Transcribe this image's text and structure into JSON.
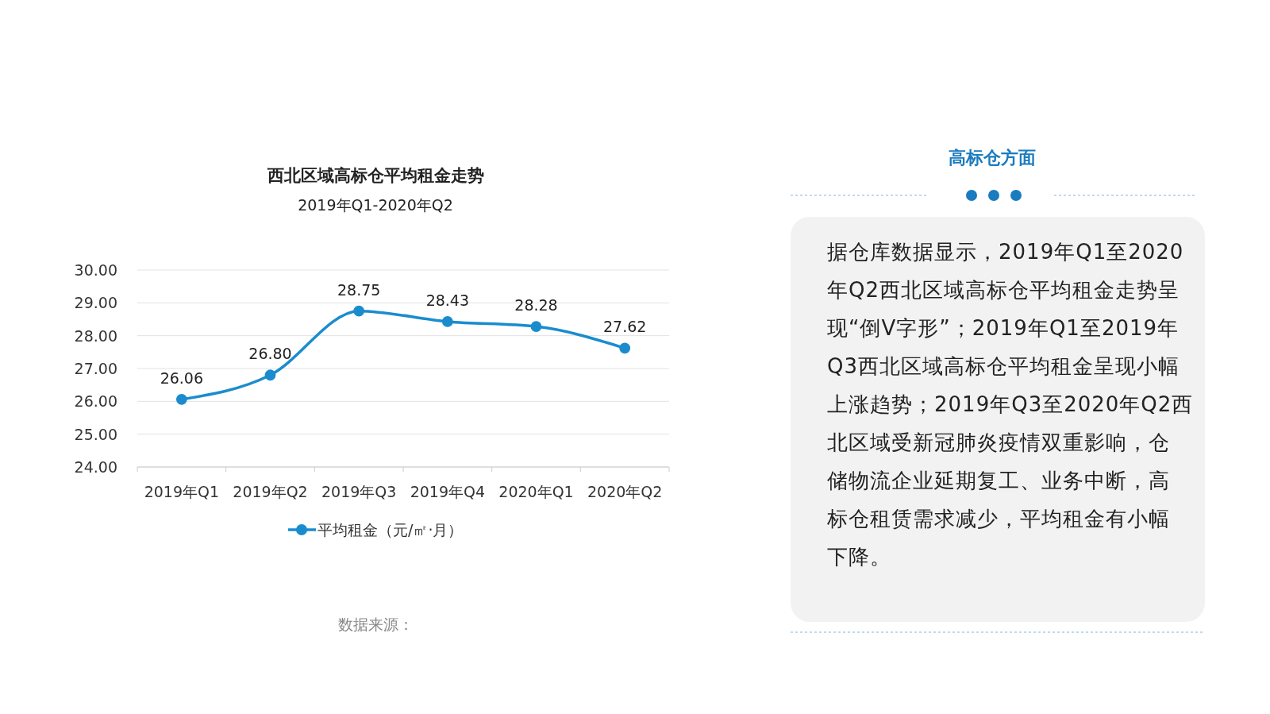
{
  "chart_data": [
    {
      "type": "line",
      "title": "西北区域高标仓平均租金走势",
      "subtitle": "2019年Q1-2020年Q2",
      "categories": [
        "2019年Q1",
        "2019年Q2",
        "2019年Q3",
        "2019年Q4",
        "2020年Q1",
        "2020年Q2"
      ],
      "series": [
        {
          "name": "平均租金（元/㎡·月）",
          "color": "#1a8cce",
          "values": [
            26.06,
            26.8,
            28.75,
            28.43,
            28.28,
            27.62
          ],
          "value_labels": [
            "26.06",
            "26.80",
            "28.75",
            "28.43",
            "28.28",
            "27.62"
          ]
        }
      ],
      "ylim": [
        24,
        30
      ],
      "yticks": [
        {
          "value": 24,
          "label": "24.00"
        },
        {
          "value": 25,
          "label": "25.00"
        },
        {
          "value": 26,
          "label": "26.00"
        },
        {
          "value": 27,
          "label": "27.00"
        },
        {
          "value": 28,
          "label": "28.00"
        },
        {
          "value": 29,
          "label": "29.00"
        },
        {
          "value": 30,
          "label": "30.00"
        }
      ],
      "grid": "y",
      "marker": "circle",
      "line_style": "solid",
      "legend": "bottom",
      "annotations": [
        "数据来源："
      ]
    },
    {
      "type": "other",
      "title": "高标仓方面",
      "annotations": [
        "据仓库数据显示，2019年Q1至2020年Q2西北区域高标仓平均租金走势呈现“倒V字形”；2019年Q1至2019年Q3西北区域高标仓平均租金呈现小幅上涨趋势；2019年Q3至2020年Q2西北区域受新冠肺炎疫情双重影响，仓储物流企业延期复工、业务中断，高标仓租赁需求减少，平均租金有小幅下降。"
      ]
    }
  ]
}
